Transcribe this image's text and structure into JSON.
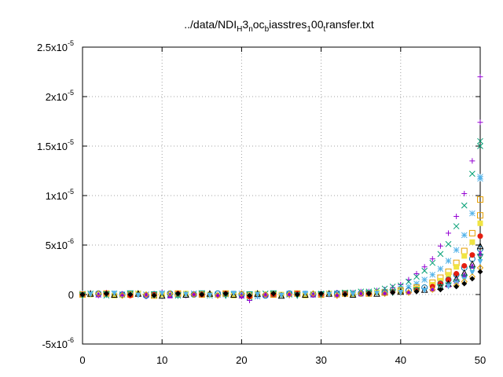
{
  "chart_data": {
    "type": "scatter",
    "title": {
      "parts": [
        {
          "text": "../data/NDI",
          "sub": false
        },
        {
          "text": "H",
          "sub": true
        },
        {
          "text": "3",
          "sub": false
        },
        {
          "text": "n",
          "sub": true
        },
        {
          "text": "oc",
          "sub": false
        },
        {
          "text": "b",
          "sub": true
        },
        {
          "text": "iasstres",
          "sub": false
        },
        {
          "text": "1",
          "sub": true
        },
        {
          "text": "00",
          "sub": false
        },
        {
          "text": "t",
          "sub": true
        },
        {
          "text": "ransfer.txt",
          "sub": false
        }
      ]
    },
    "xlabel": "",
    "ylabel": "",
    "xlim": [
      0,
      50
    ],
    "ylim": [
      -5e-06,
      2.5e-05
    ],
    "x_ticks": [
      {
        "value": 0,
        "label": "0"
      },
      {
        "value": 10,
        "label": "10"
      },
      {
        "value": 20,
        "label": "20"
      },
      {
        "value": 30,
        "label": "30"
      },
      {
        "value": 40,
        "label": "40"
      },
      {
        "value": 50,
        "label": "50"
      }
    ],
    "y_ticks": [
      {
        "value": -5e-06,
        "mant": "-5x10",
        "exp": "-6"
      },
      {
        "value": 0,
        "mant": "0",
        "exp": ""
      },
      {
        "value": 5e-06,
        "mant": "5x10",
        "exp": "-6"
      },
      {
        "value": 1e-05,
        "mant": "1x10",
        "exp": "-5"
      },
      {
        "value": 1.5e-05,
        "mant": "1.5x10",
        "exp": "-5"
      },
      {
        "value": 2e-05,
        "mant": "2x10",
        "exp": "-5"
      },
      {
        "value": 2.5e-05,
        "mant": "2.5x10",
        "exp": "-5"
      }
    ],
    "grid": true,
    "legend": false,
    "series": [
      {
        "marker": "plus",
        "color": "#9400d3",
        "x": [
          0,
          1,
          2,
          3,
          4,
          5,
          6,
          7,
          8,
          9,
          10,
          11,
          12,
          13,
          14,
          15,
          16,
          17,
          18,
          19,
          20,
          21,
          22,
          23,
          24,
          25,
          26,
          27,
          28,
          29,
          30,
          31,
          32,
          33,
          34,
          35,
          36,
          37,
          38,
          39,
          40,
          41,
          42,
          43,
          44,
          45,
          46,
          47,
          48,
          49,
          50,
          50
        ],
        "y": [
          1e-07,
          0,
          -1e-07,
          2e-07,
          0,
          -1e-07,
          1e-07,
          0,
          -2e-07,
          1e-07,
          2e-07,
          0,
          1e-07,
          -1e-07,
          0,
          1e-07,
          0,
          -1e-07,
          1e-07,
          0,
          -2e-07,
          -6e-07,
          -2e-07,
          0,
          1e-07,
          0,
          -1e-07,
          0,
          1e-07,
          0,
          1e-07,
          0,
          2e-07,
          1e-07,
          2e-07,
          3e-07,
          3e-07,
          4e-07,
          5e-07,
          7e-07,
          1e-06,
          1.5e-06,
          2.1e-06,
          2.8e-06,
          3.6e-06,
          4.9e-06,
          6.2e-06,
          7.9e-06,
          1.02e-05,
          1.35e-05,
          1.74e-05,
          2.2e-05
        ]
      },
      {
        "marker": "cross",
        "color": "#009e73",
        "x": [
          0,
          1,
          2,
          3,
          4,
          5,
          6,
          7,
          8,
          9,
          10,
          11,
          12,
          13,
          14,
          15,
          16,
          17,
          18,
          19,
          20,
          21,
          22,
          23,
          24,
          25,
          26,
          27,
          28,
          29,
          30,
          31,
          32,
          33,
          34,
          35,
          36,
          37,
          38,
          39,
          40,
          41,
          42,
          43,
          44,
          45,
          46,
          47,
          48,
          49,
          50,
          50
        ],
        "y": [
          0,
          1e-07,
          0,
          -1e-07,
          1e-07,
          0,
          0,
          1e-07,
          0,
          -1e-07,
          1e-07,
          0,
          -1e-07,
          0,
          1e-07,
          0,
          -1e-07,
          0,
          1e-07,
          0,
          -1e-07,
          -3e-07,
          0,
          1e-07,
          0,
          -1e-07,
          0,
          1e-07,
          0,
          0,
          1e-07,
          1e-07,
          1e-07,
          2e-07,
          2e-07,
          3e-07,
          3e-07,
          4e-07,
          6e-07,
          8e-07,
          9e-07,
          1.3e-06,
          1.8e-06,
          2.4e-06,
          3.2e-06,
          4.1e-06,
          5.1e-06,
          6.9e-06,
          9e-06,
          1.22e-05,
          1.5e-05,
          1.55e-05
        ]
      },
      {
        "marker": "star",
        "color": "#56b4e9",
        "x": [
          0,
          2,
          4,
          6,
          8,
          10,
          12,
          14,
          16,
          18,
          20,
          22,
          24,
          26,
          28,
          30,
          32,
          34,
          36,
          38,
          40,
          41,
          42,
          43,
          44,
          45,
          46,
          47,
          48,
          49,
          50,
          50
        ],
        "y": [
          1e-07,
          0,
          -1e-07,
          1e-07,
          0,
          -1e-07,
          0,
          1e-07,
          -1e-07,
          0,
          1e-07,
          -2e-07,
          0,
          1e-07,
          0,
          1e-07,
          0,
          1e-07,
          2e-07,
          3e-07,
          6e-07,
          8e-07,
          1.1e-06,
          1.5e-06,
          2e-06,
          2.6e-06,
          3.4e-06,
          4.5e-06,
          6e-06,
          8.2e-06,
          1.17e-05,
          1.19e-05
        ]
      },
      {
        "marker": "open-square",
        "color": "#e69f00",
        "x": [
          0,
          3,
          6,
          9,
          12,
          15,
          18,
          21,
          24,
          27,
          30,
          33,
          36,
          38,
          40,
          42,
          44,
          45,
          46,
          47,
          48,
          49,
          50,
          50
        ],
        "y": [
          0,
          1e-07,
          0,
          -1e-07,
          1e-07,
          0,
          1e-07,
          -1e-07,
          0,
          1e-07,
          0,
          1e-07,
          1e-07,
          2e-07,
          4e-07,
          7e-07,
          1.2e-06,
          1.7e-06,
          2.3e-06,
          3.2e-06,
          4.4e-06,
          6.2e-06,
          8e-06,
          9.6e-06
        ]
      },
      {
        "marker": "filled-square",
        "color": "#f0e442",
        "x": [
          1,
          4,
          7,
          10,
          13,
          16,
          19,
          22,
          25,
          28,
          31,
          34,
          37,
          40,
          42,
          44,
          45,
          46,
          47,
          48,
          49,
          50
        ],
        "y": [
          0,
          -1e-07,
          1e-07,
          0,
          1e-07,
          0,
          -1e-07,
          1e-07,
          0,
          -1e-07,
          1e-07,
          0,
          2e-07,
          3e-07,
          6e-07,
          1e-06,
          1.4e-06,
          2e-06,
          2.8e-06,
          3.9e-06,
          5.3e-06,
          7.2e-06
        ]
      },
      {
        "marker": "open-circle",
        "color": "#0072b2",
        "x": [
          2,
          5,
          8,
          11,
          14,
          17,
          20,
          23,
          26,
          29,
          32,
          35,
          38,
          41,
          43,
          45,
          46,
          47,
          48,
          49,
          50
        ],
        "y": [
          1e-07,
          0,
          -1e-07,
          1e-07,
          0,
          1e-07,
          0,
          -1e-07,
          1e-07,
          0,
          1e-07,
          1e-07,
          2e-07,
          4e-07,
          7e-07,
          1.1e-06,
          1.5e-06,
          2e-06,
          2.7e-06,
          3.6e-06,
          4.6e-06
        ]
      },
      {
        "marker": "filled-circle",
        "color": "#e51e10",
        "x": [
          0,
          3,
          6,
          9,
          12,
          15,
          18,
          21,
          24,
          27,
          30,
          33,
          36,
          39,
          42,
          44,
          45,
          46,
          47,
          48,
          49,
          50
        ],
        "y": [
          0,
          1e-07,
          -1e-07,
          0,
          1e-07,
          0,
          1e-07,
          -2e-07,
          0,
          1e-07,
          0,
          1e-07,
          1e-07,
          3e-07,
          5e-07,
          8e-07,
          1.1e-06,
          1.5e-06,
          2.1e-06,
          2.9e-06,
          4e-06,
          5.9e-06
        ]
      },
      {
        "marker": "open-triangle",
        "color": "#000000",
        "x": [
          1,
          4,
          7,
          10,
          13,
          16,
          19,
          22,
          25,
          28,
          31,
          34,
          37,
          40,
          43,
          45,
          46,
          47,
          48,
          49,
          50
        ],
        "y": [
          1e-07,
          0,
          1e-07,
          -1e-07,
          0,
          1e-07,
          0,
          1e-07,
          -1e-07,
          0,
          1e-07,
          0,
          1e-07,
          3e-07,
          5e-07,
          8e-07,
          1.1e-06,
          1.6e-06,
          2.2e-06,
          3.1e-06,
          4.9e-06
        ]
      },
      {
        "marker": "filled-triangle",
        "color": "#9400d3",
        "x": [
          2,
          5,
          8,
          11,
          14,
          17,
          20,
          23,
          26,
          29,
          32,
          35,
          38,
          41,
          44,
          46,
          47,
          48,
          49,
          50
        ],
        "y": [
          0,
          1e-07,
          0,
          -1e-07,
          1e-07,
          0,
          -1e-07,
          0,
          1e-07,
          0,
          0,
          1e-07,
          2e-07,
          3e-07,
          6e-07,
          1e-06,
          1.4e-06,
          2e-06,
          2.9e-06,
          4.2e-06
        ]
      },
      {
        "marker": "open-inverted-triangle",
        "color": "#009e73",
        "x": [
          0,
          3,
          6,
          9,
          12,
          15,
          18,
          21,
          24,
          27,
          30,
          33,
          36,
          39,
          42,
          45,
          46,
          47,
          48,
          49,
          50
        ],
        "y": [
          -1e-07,
          0,
          1e-07,
          0,
          -1e-07,
          1e-07,
          -1e-07,
          0,
          1e-07,
          -1e-07,
          0,
          1e-07,
          1e-07,
          2e-07,
          4e-07,
          7e-07,
          9e-07,
          1.2e-06,
          1.7e-06,
          2.5e-06,
          3.8e-06
        ]
      },
      {
        "marker": "filled-inverted-triangle",
        "color": "#56b4e9",
        "x": [
          1,
          4,
          7,
          10,
          13,
          16,
          19,
          22,
          25,
          28,
          31,
          34,
          37,
          40,
          43,
          46,
          47,
          48,
          49,
          50
        ],
        "y": [
          0,
          1e-07,
          -1e-07,
          1e-07,
          0,
          -1e-07,
          1e-07,
          0,
          -1e-07,
          1e-07,
          0,
          0,
          1e-07,
          2e-07,
          4e-07,
          8e-07,
          1.1e-06,
          1.5e-06,
          2.2e-06,
          3.3e-06
        ]
      },
      {
        "marker": "open-diamond",
        "color": "#e69f00",
        "x": [
          2,
          5,
          8,
          11,
          14,
          17,
          20,
          23,
          26,
          29,
          32,
          35,
          38,
          41,
          44,
          47,
          48,
          49,
          50
        ],
        "y": [
          1e-07,
          -1e-07,
          0,
          1e-07,
          0,
          -1e-07,
          1e-07,
          0,
          0,
          1e-07,
          -1e-07,
          1e-07,
          1e-07,
          2e-07,
          5e-07,
          9e-07,
          1.3e-06,
          1.8e-06,
          2.7e-06
        ]
      },
      {
        "marker": "filled-diamond",
        "color": "#000000",
        "x": [
          0,
          3,
          6,
          9,
          12,
          15,
          18,
          21,
          24,
          27,
          30,
          33,
          36,
          39,
          42,
          45,
          47,
          48,
          49,
          50
        ],
        "y": [
          0,
          1e-07,
          0,
          -1e-07,
          1e-07,
          0,
          1e-07,
          -1e-07,
          1e-07,
          0,
          1e-07,
          0,
          1e-07,
          2e-07,
          3e-07,
          5e-07,
          8e-07,
          1.1e-06,
          1.6e-06,
          2.3e-06
        ]
      }
    ]
  }
}
